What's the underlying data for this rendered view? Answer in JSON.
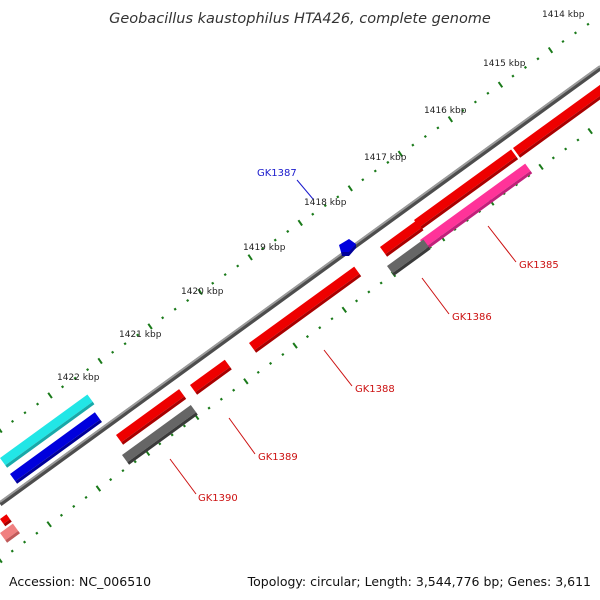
{
  "title": "Geobacillus kaustophilus HTA426, complete genome",
  "footer": {
    "accession": "Accession: NC_006510",
    "summary": "Topology: circular; Length: 3,544,776 bp; Genes: 3,611"
  },
  "kbp_labels": [
    "1414 kbp",
    "1415 kbp",
    "1416 kbp",
    "1417 kbp",
    "1418 kbp",
    "1419 kbp",
    "1420 kbp",
    "1421 kbp",
    "1422 kbp"
  ],
  "gene_labels": [
    {
      "text": "GK1387",
      "color": "#1a1acc"
    },
    {
      "text": "GK1385",
      "color": "#cc1111"
    },
    {
      "text": "GK1386",
      "color": "#cc1111"
    },
    {
      "text": "GK1388",
      "color": "#cc1111"
    },
    {
      "text": "GK1389",
      "color": "#cc1111"
    },
    {
      "text": "GK1390",
      "color": "#cc1111"
    }
  ],
  "colors": {
    "backbone": "#8a8a8a",
    "tick_green": "#1a7a1a",
    "red": "#ee0000",
    "pink": "#ff3399",
    "gray": "#666666",
    "blue": "#0000dd",
    "cyan": "#22e6e6",
    "salmon": "#f08080"
  }
}
